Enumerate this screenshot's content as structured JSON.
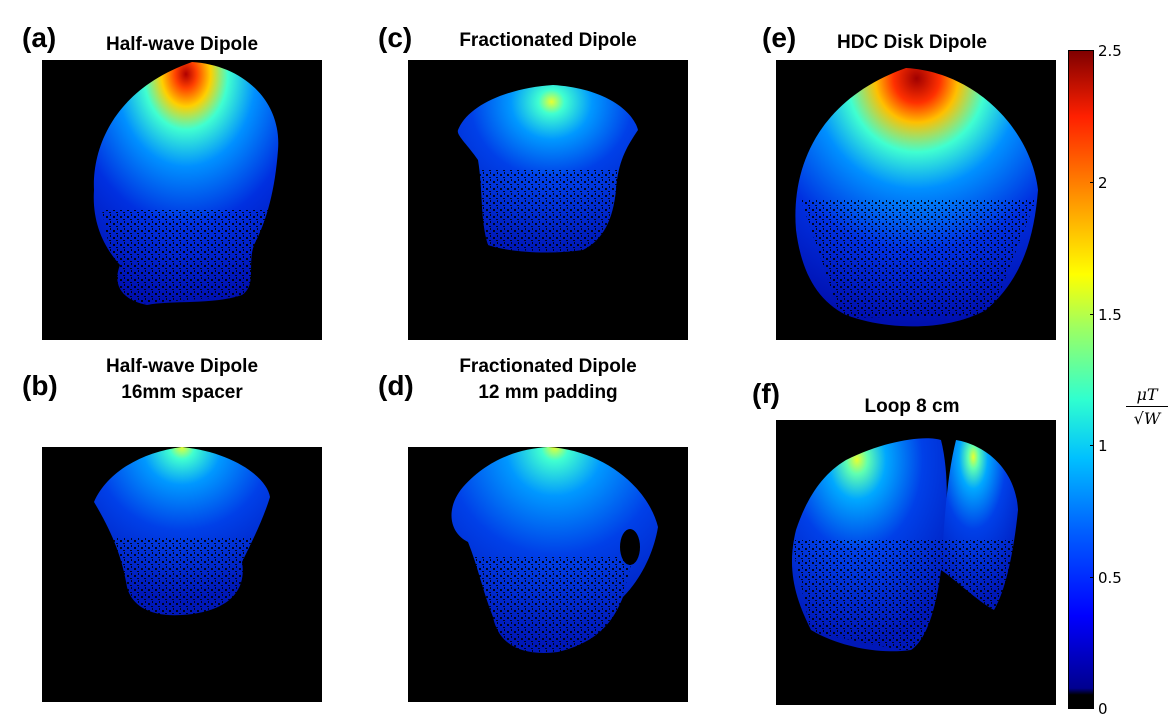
{
  "panels": [
    {
      "letter": "(a)",
      "title_lines": [
        "Half-wave Dipole",
        ""
      ]
    },
    {
      "letter": "(b)",
      "title_lines": [
        "Half-wave Dipole",
        "16mm spacer"
      ]
    },
    {
      "letter": "(c)",
      "title_lines": [
        "Fractionated Dipole",
        ""
      ]
    },
    {
      "letter": "(d)",
      "title_lines": [
        "Fractionated Dipole",
        "12 mm padding"
      ]
    },
    {
      "letter": "(e)",
      "title_lines": [
        "HDC Disk Dipole",
        ""
      ]
    },
    {
      "letter": "(f)",
      "title_lines": [
        "Loop 8 cm",
        ""
      ]
    }
  ],
  "colorbar": {
    "ticks": [
      "2.5",
      "2",
      "1.5",
      "1",
      "0.5",
      "0"
    ],
    "unit_numerator": "μT",
    "unit_denominator": "√W",
    "colormap": "jet",
    "range": [
      0,
      2.5
    ]
  }
}
